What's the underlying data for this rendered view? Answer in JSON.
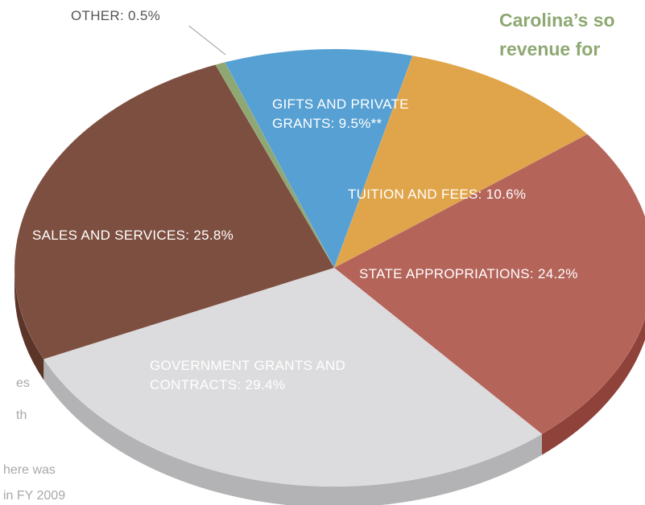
{
  "chart_data": {
    "type": "pie",
    "title_lines": [
      "Carolina’s so",
      "revenue for"
    ],
    "background_text": [
      "es",
      "th",
      "here was",
      "in FY 2009"
    ],
    "values": [
      9.5,
      10.6,
      24.2,
      29.4,
      25.8,
      0.5
    ],
    "value_labels": [
      "GIFTS AND PRIVATE GRANTS: 9.5%**",
      "TUITION AND FEES: 10.6%",
      "STATE APPROPRIATIONS: 24.2%",
      "GOVERNMENT GRANTS AND CONTRACTS: 29.4%",
      "SALES AND SERVICES: 25.8%",
      "OTHER: 0.5%"
    ],
    "colors": [
      "#57a0d3",
      "#e0a54a",
      "#b5645a",
      "#dcdcde",
      "#7d4f40",
      "#8fa873"
    ],
    "side_colors": [
      "#3f80ae",
      "#b9842f",
      "#8e4239",
      "#b3b3b5",
      "#5c3529",
      "#6f8a55"
    ]
  }
}
